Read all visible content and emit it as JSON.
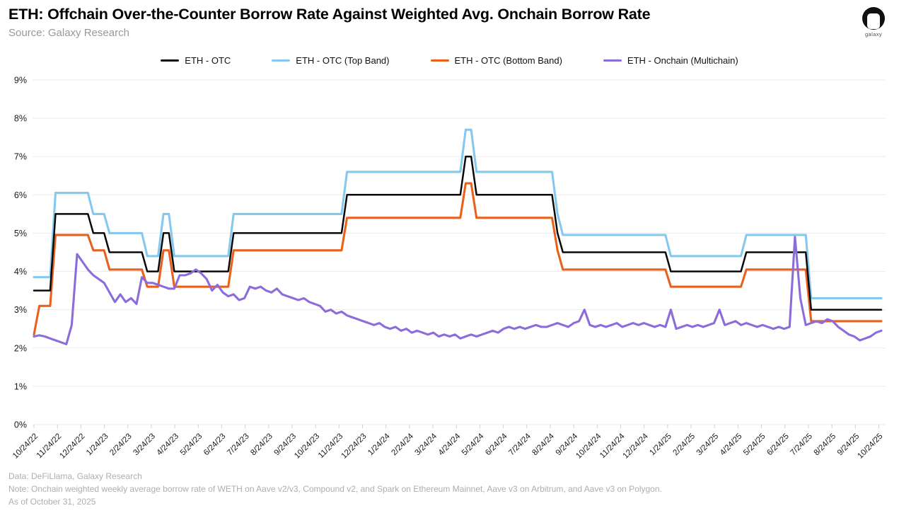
{
  "header": {
    "title": "ETH: Offchain Over-the-Counter Borrow Rate Against Weighted Avg. Onchain Borrow Rate",
    "source": "Source: Galaxy Research"
  },
  "logo": {
    "label": "galaxy"
  },
  "footer": {
    "data_line": "Data: DeFiLlama, Galaxy Research",
    "note_line": "Note: Onchain weighted weekly average borrow rate of WETH on Aave v2/v3, Compound v2, and Spark on Ethereum Mainnet, Aave v3 on Arbitrum, and Aave v3 on Polygon.",
    "as_of": "As of October 31, 2025"
  },
  "chart_data": {
    "type": "line",
    "title": "ETH: Offchain Over-the-Counter Borrow Rate Against Weighted Avg. Onchain Borrow Rate",
    "xlabel": "",
    "ylabel": "",
    "frequency": "weekly",
    "grid": "horizontal",
    "legend_position": "top",
    "ylim": [
      0,
      9
    ],
    "y_tick_labels": [
      "0%",
      "1%",
      "2%",
      "3%",
      "4%",
      "5%",
      "6%",
      "7%",
      "8%",
      "9%"
    ],
    "x_tick_labels": [
      "10/24/22",
      "11/24/22",
      "12/24/22",
      "1/24/23",
      "2/24/23",
      "3/24/23",
      "4/24/23",
      "5/24/23",
      "6/24/23",
      "7/24/23",
      "8/24/23",
      "9/24/23",
      "10/24/23",
      "11/24/23",
      "12/24/23",
      "1/24/24",
      "2/24/24",
      "3/24/24",
      "4/24/24",
      "5/24/24",
      "6/24/24",
      "7/24/24",
      "8/24/24",
      "9/24/24",
      "10/24/24",
      "11/24/24",
      "12/24/24",
      "1/24/25",
      "2/24/25",
      "3/24/25",
      "4/24/25",
      "5/24/25",
      "6/24/25",
      "7/24/25",
      "8/24/25",
      "9/24/25",
      "10/24/25"
    ],
    "series": [
      {
        "name": "ETH - OTC",
        "color": "#0a0a0a",
        "draw_order": 2,
        "values": [
          3.5,
          3.5,
          3.5,
          3.5,
          5.5,
          5.5,
          5.5,
          5.5,
          5.5,
          5.5,
          5.5,
          5,
          5,
          5,
          4.5,
          4.5,
          4.5,
          4.5,
          4.5,
          4.5,
          4.5,
          4,
          4,
          4,
          5,
          5,
          4,
          4,
          4,
          4,
          4,
          4,
          4,
          4,
          4,
          4,
          4,
          5,
          5,
          5,
          5,
          5,
          5,
          5,
          5,
          5,
          5,
          5,
          5,
          5,
          5,
          5,
          5,
          5,
          5,
          5,
          5,
          5,
          6,
          6,
          6,
          6,
          6,
          6,
          6,
          6,
          6,
          6,
          6,
          6,
          6,
          6,
          6,
          6,
          6,
          6,
          6,
          6,
          6,
          6,
          7,
          7,
          6,
          6,
          6,
          6,
          6,
          6,
          6,
          6,
          6,
          6,
          6,
          6,
          6,
          6,
          6,
          5,
          4.5,
          4.5,
          4.5,
          4.5,
          4.5,
          4.5,
          4.5,
          4.5,
          4.5,
          4.5,
          4.5,
          4.5,
          4.5,
          4.5,
          4.5,
          4.5,
          4.5,
          4.5,
          4.5,
          4.5,
          4,
          4,
          4,
          4,
          4,
          4,
          4,
          4,
          4,
          4,
          4,
          4,
          4,
          4,
          4.5,
          4.5,
          4.5,
          4.5,
          4.5,
          4.5,
          4.5,
          4.5,
          4.5,
          4.5,
          4.5,
          4.5,
          3,
          3,
          3,
          3,
          3,
          3,
          3,
          3,
          3,
          3,
          3,
          3,
          3,
          3
        ]
      },
      {
        "name": "ETH - OTC (Top Band)",
        "color": "#86c9ee",
        "draw_order": 0,
        "values": [
          3.85,
          3.85,
          3.85,
          3.85,
          6.05,
          6.05,
          6.05,
          6.05,
          6.05,
          6.05,
          6.05,
          5.5,
          5.5,
          5.5,
          5,
          5,
          5,
          5,
          5,
          5,
          5,
          4.4,
          4.4,
          4.4,
          5.5,
          5.5,
          4.4,
          4.4,
          4.4,
          4.4,
          4.4,
          4.4,
          4.4,
          4.4,
          4.4,
          4.4,
          4.4,
          5.5,
          5.5,
          5.5,
          5.5,
          5.5,
          5.5,
          5.5,
          5.5,
          5.5,
          5.5,
          5.5,
          5.5,
          5.5,
          5.5,
          5.5,
          5.5,
          5.5,
          5.5,
          5.5,
          5.5,
          5.5,
          6.6,
          6.6,
          6.6,
          6.6,
          6.6,
          6.6,
          6.6,
          6.6,
          6.6,
          6.6,
          6.6,
          6.6,
          6.6,
          6.6,
          6.6,
          6.6,
          6.6,
          6.6,
          6.6,
          6.6,
          6.6,
          6.6,
          7.7,
          7.7,
          6.6,
          6.6,
          6.6,
          6.6,
          6.6,
          6.6,
          6.6,
          6.6,
          6.6,
          6.6,
          6.6,
          6.6,
          6.6,
          6.6,
          6.6,
          5.5,
          4.95,
          4.95,
          4.95,
          4.95,
          4.95,
          4.95,
          4.95,
          4.95,
          4.95,
          4.95,
          4.95,
          4.95,
          4.95,
          4.95,
          4.95,
          4.95,
          4.95,
          4.95,
          4.95,
          4.95,
          4.4,
          4.4,
          4.4,
          4.4,
          4.4,
          4.4,
          4.4,
          4.4,
          4.4,
          4.4,
          4.4,
          4.4,
          4.4,
          4.4,
          4.95,
          4.95,
          4.95,
          4.95,
          4.95,
          4.95,
          4.95,
          4.95,
          4.95,
          4.95,
          4.95,
          4.95,
          3.3,
          3.3,
          3.3,
          3.3,
          3.3,
          3.3,
          3.3,
          3.3,
          3.3,
          3.3,
          3.3,
          3.3,
          3.3,
          3.3
        ]
      },
      {
        "name": "ETH - OTC (Bottom Band)",
        "color": "#e8621d",
        "draw_order": 1,
        "values": [
          2.35,
          3.1,
          3.1,
          3.1,
          4.95,
          4.95,
          4.95,
          4.95,
          4.95,
          4.95,
          4.95,
          4.55,
          4.55,
          4.55,
          4.05,
          4.05,
          4.05,
          4.05,
          4.05,
          4.05,
          4.05,
          3.6,
          3.6,
          3.6,
          4.55,
          4.55,
          3.6,
          3.6,
          3.6,
          3.6,
          3.6,
          3.6,
          3.6,
          3.6,
          3.6,
          3.6,
          3.6,
          4.55,
          4.55,
          4.55,
          4.55,
          4.55,
          4.55,
          4.55,
          4.55,
          4.55,
          4.55,
          4.55,
          4.55,
          4.55,
          4.55,
          4.55,
          4.55,
          4.55,
          4.55,
          4.55,
          4.55,
          4.55,
          5.4,
          5.4,
          5.4,
          5.4,
          5.4,
          5.4,
          5.4,
          5.4,
          5.4,
          5.4,
          5.4,
          5.4,
          5.4,
          5.4,
          5.4,
          5.4,
          5.4,
          5.4,
          5.4,
          5.4,
          5.4,
          5.4,
          6.3,
          6.3,
          5.4,
          5.4,
          5.4,
          5.4,
          5.4,
          5.4,
          5.4,
          5.4,
          5.4,
          5.4,
          5.4,
          5.4,
          5.4,
          5.4,
          5.4,
          4.55,
          4.05,
          4.05,
          4.05,
          4.05,
          4.05,
          4.05,
          4.05,
          4.05,
          4.05,
          4.05,
          4.05,
          4.05,
          4.05,
          4.05,
          4.05,
          4.05,
          4.05,
          4.05,
          4.05,
          4.05,
          3.6,
          3.6,
          3.6,
          3.6,
          3.6,
          3.6,
          3.6,
          3.6,
          3.6,
          3.6,
          3.6,
          3.6,
          3.6,
          3.6,
          4.05,
          4.05,
          4.05,
          4.05,
          4.05,
          4.05,
          4.05,
          4.05,
          4.05,
          4.05,
          4.05,
          4.05,
          2.7,
          2.7,
          2.7,
          2.7,
          2.7,
          2.7,
          2.7,
          2.7,
          2.7,
          2.7,
          2.7,
          2.7,
          2.7,
          2.7
        ]
      },
      {
        "name": "ETH - Onchain (Multichain)",
        "color": "#8c6cdb",
        "draw_order": 3,
        "values": [
          2.3,
          2.33,
          2.3,
          2.25,
          2.2,
          2.15,
          2.1,
          2.6,
          4.45,
          4.25,
          4.05,
          3.9,
          3.8,
          3.7,
          3.45,
          3.2,
          3.4,
          3.2,
          3.3,
          3.15,
          3.85,
          3.7,
          3.7,
          3.65,
          3.6,
          3.55,
          3.55,
          3.9,
          3.9,
          3.95,
          4.05,
          3.95,
          3.8,
          3.5,
          3.65,
          3.45,
          3.35,
          3.4,
          3.25,
          3.3,
          3.6,
          3.55,
          3.6,
          3.5,
          3.45,
          3.55,
          3.4,
          3.35,
          3.3,
          3.25,
          3.3,
          3.2,
          3.15,
          3.1,
          2.95,
          3.0,
          2.9,
          2.95,
          2.85,
          2.8,
          2.75,
          2.7,
          2.65,
          2.6,
          2.65,
          2.55,
          2.5,
          2.55,
          2.45,
          2.5,
          2.4,
          2.45,
          2.4,
          2.35,
          2.4,
          2.3,
          2.35,
          2.3,
          2.35,
          2.25,
          2.3,
          2.35,
          2.3,
          2.35,
          2.4,
          2.45,
          2.4,
          2.5,
          2.55,
          2.5,
          2.55,
          2.5,
          2.55,
          2.6,
          2.55,
          2.55,
          2.6,
          2.65,
          2.6,
          2.55,
          2.65,
          2.7,
          3.0,
          2.6,
          2.55,
          2.6,
          2.55,
          2.6,
          2.65,
          2.55,
          2.6,
          2.65,
          2.6,
          2.65,
          2.6,
          2.55,
          2.6,
          2.55,
          3.0,
          2.5,
          2.55,
          2.6,
          2.55,
          2.6,
          2.55,
          2.6,
          2.65,
          3.0,
          2.6,
          2.65,
          2.7,
          2.6,
          2.65,
          2.6,
          2.55,
          2.6,
          2.55,
          2.5,
          2.55,
          2.5,
          2.55,
          4.9,
          3.3,
          2.6,
          2.65,
          2.7,
          2.65,
          2.75,
          2.7,
          2.55,
          2.45,
          2.35,
          2.3,
          2.2,
          2.25,
          2.3,
          2.4,
          2.45
        ]
      }
    ]
  }
}
